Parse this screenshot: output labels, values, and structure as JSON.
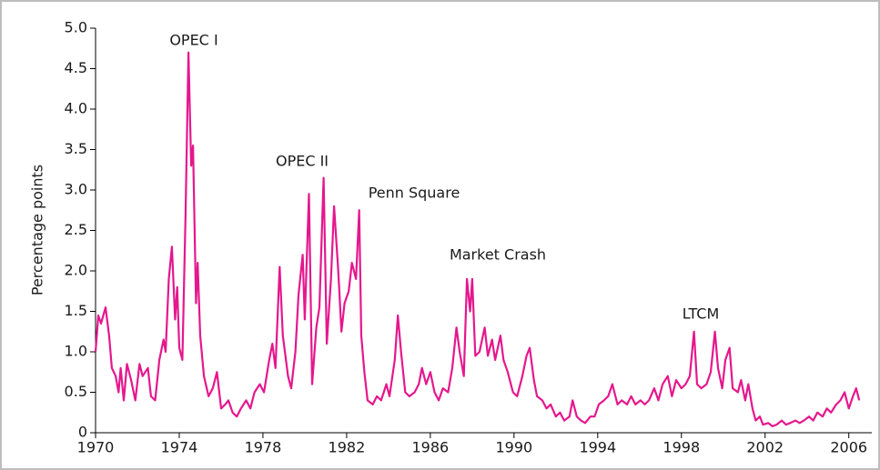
{
  "chart_data": {
    "type": "line",
    "y_label": "Percentage points",
    "annotations": [
      "OPEC I",
      "OPEC II",
      "Penn Square",
      "Market Crash",
      "LTCM"
    ],
    "color": "#e5178d",
    "xlim": [
      1970,
      2007.1
    ],
    "xticks": [
      1970,
      1974,
      1978,
      1982,
      1986,
      1990,
      1994,
      1998,
      2002,
      2006
    ],
    "ylim": [
      0,
      5
    ],
    "yticks": [
      0,
      0.5,
      {
        "value": 1,
        "label": "1.0"
      },
      1.5,
      {
        "value": 2,
        "label": "2.0"
      },
      2.5,
      {
        "value": 3,
        "label": "3.0"
      },
      3.5,
      {
        "value": 4,
        "label": "4.0"
      },
      4.5,
      {
        "value": 5,
        "label": "5.0"
      }
    ],
    "x": [
      1970.0,
      1970.13,
      1970.26,
      1970.48,
      1970.65,
      1970.78,
      1970.96,
      1971.1,
      1971.2,
      1971.35,
      1971.5,
      1971.7,
      1971.9,
      1972.1,
      1972.25,
      1972.5,
      1972.65,
      1972.85,
      1973.05,
      1973.25,
      1973.35,
      1973.5,
      1973.65,
      1973.8,
      1973.9,
      1974.0,
      1974.15,
      1974.3,
      1974.44,
      1974.57,
      1974.66,
      1974.8,
      1974.88,
      1975.0,
      1975.18,
      1975.4,
      1975.6,
      1975.8,
      1976.0,
      1976.2,
      1976.35,
      1976.55,
      1976.75,
      1976.95,
      1977.2,
      1977.4,
      1977.6,
      1977.85,
      1978.05,
      1978.3,
      1978.45,
      1978.6,
      1978.8,
      1978.95,
      1979.2,
      1979.35,
      1979.55,
      1979.7,
      1979.9,
      1980.0,
      1980.2,
      1980.35,
      1980.55,
      1980.7,
      1980.9,
      1981.05,
      1981.25,
      1981.4,
      1981.6,
      1981.75,
      1981.9,
      1982.1,
      1982.25,
      1982.45,
      1982.6,
      1982.7,
      1982.85,
      1983.0,
      1983.25,
      1983.45,
      1983.65,
      1983.9,
      1984.05,
      1984.3,
      1984.45,
      1984.6,
      1984.8,
      1985.0,
      1985.25,
      1985.45,
      1985.6,
      1985.8,
      1986.0,
      1986.2,
      1986.4,
      1986.6,
      1986.85,
      1987.05,
      1987.25,
      1987.4,
      1987.6,
      1987.75,
      1987.9,
      1988.0,
      1988.15,
      1988.35,
      1988.6,
      1988.75,
      1988.95,
      1989.1,
      1989.35,
      1989.5,
      1989.7,
      1989.95,
      1990.15,
      1990.4,
      1990.6,
      1990.75,
      1990.95,
      1991.1,
      1991.35,
      1991.55,
      1991.75,
      1992.0,
      1992.2,
      1992.4,
      1992.65,
      1992.8,
      1993.0,
      1993.2,
      1993.4,
      1993.65,
      1993.85,
      1994.05,
      1994.3,
      1994.5,
      1994.7,
      1994.95,
      1995.15,
      1995.4,
      1995.6,
      1995.8,
      1996.05,
      1996.25,
      1996.45,
      1996.7,
      1996.9,
      1997.1,
      1997.35,
      1997.55,
      1997.75,
      1998.0,
      1998.2,
      1998.4,
      1998.6,
      1998.75,
      1998.95,
      1999.2,
      1999.4,
      1999.6,
      1999.75,
      1999.95,
      2000.1,
      2000.3,
      2000.45,
      2000.7,
      2000.85,
      2001.05,
      2001.2,
      2001.4,
      2001.55,
      2001.75,
      2001.9,
      2002.15,
      2002.35,
      2002.55,
      2002.8,
      2003.0,
      2003.2,
      2003.45,
      2003.65,
      2003.85,
      2004.1,
      2004.3,
      2004.5,
      2004.75,
      2004.95,
      2005.15,
      2005.4,
      2005.6,
      2005.8,
      2006.0,
      2006.2,
      2006.35,
      2006.5
    ],
    "values": [
      1.0,
      1.45,
      1.35,
      1.55,
      1.2,
      0.8,
      0.7,
      0.5,
      0.8,
      0.4,
      0.85,
      0.65,
      0.4,
      0.85,
      0.7,
      0.8,
      0.45,
      0.4,
      0.9,
      1.15,
      1.0,
      1.9,
      2.3,
      1.4,
      1.8,
      1.05,
      0.9,
      2.7,
      4.7,
      3.3,
      3.55,
      1.6,
      2.1,
      1.2,
      0.7,
      0.45,
      0.55,
      0.75,
      0.3,
      0.35,
      0.4,
      0.25,
      0.2,
      0.3,
      0.4,
      0.3,
      0.5,
      0.6,
      0.5,
      0.9,
      1.1,
      0.8,
      2.05,
      1.2,
      0.7,
      0.55,
      1.0,
      1.7,
      2.2,
      1.4,
      2.95,
      0.6,
      1.3,
      1.55,
      3.15,
      1.1,
      1.9,
      2.8,
      2.0,
      1.25,
      1.6,
      1.75,
      2.1,
      1.9,
      2.75,
      1.2,
      0.75,
      0.4,
      0.35,
      0.45,
      0.4,
      0.6,
      0.45,
      0.9,
      1.45,
      1.0,
      0.5,
      0.45,
      0.5,
      0.6,
      0.8,
      0.6,
      0.75,
      0.5,
      0.4,
      0.55,
      0.5,
      0.8,
      1.3,
      1.0,
      0.7,
      1.9,
      1.5,
      1.9,
      0.95,
      1.0,
      1.3,
      0.95,
      1.15,
      0.9,
      1.2,
      0.9,
      0.75,
      0.5,
      0.45,
      0.7,
      0.95,
      1.05,
      0.65,
      0.45,
      0.4,
      0.3,
      0.35,
      0.2,
      0.25,
      0.15,
      0.2,
      0.4,
      0.2,
      0.15,
      0.12,
      0.2,
      0.2,
      0.35,
      0.4,
      0.45,
      0.6,
      0.35,
      0.4,
      0.35,
      0.45,
      0.35,
      0.4,
      0.35,
      0.4,
      0.55,
      0.4,
      0.6,
      0.7,
      0.45,
      0.65,
      0.55,
      0.6,
      0.7,
      1.25,
      0.6,
      0.55,
      0.6,
      0.75,
      1.25,
      0.8,
      0.55,
      0.9,
      1.05,
      0.55,
      0.5,
      0.65,
      0.4,
      0.6,
      0.3,
      0.15,
      0.2,
      0.1,
      0.12,
      0.08,
      0.1,
      0.15,
      0.1,
      0.12,
      0.15,
      0.12,
      0.15,
      0.2,
      0.15,
      0.25,
      0.2,
      0.3,
      0.25,
      0.35,
      0.4,
      0.5,
      0.3,
      0.45,
      0.55,
      0.4
    ]
  }
}
